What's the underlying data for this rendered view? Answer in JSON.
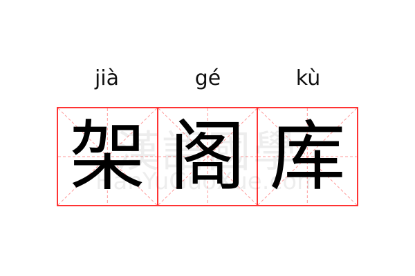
{
  "word": [
    {
      "pinyin": "jià",
      "hanzi": "架"
    },
    {
      "pinyin": "gé",
      "hanzi": "阁"
    },
    {
      "pinyin": "kù",
      "hanzi": "库"
    }
  ],
  "watermark": {
    "chinese": "漢語國學",
    "latin": "HanYuGuoXue.com"
  },
  "colors": {
    "grid": "#ff3333",
    "guides": "#ff9a9a",
    "text": "#000000"
  }
}
